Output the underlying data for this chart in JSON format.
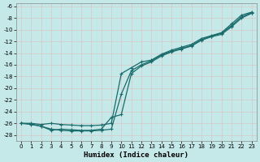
{
  "xlabel": "Humidex (Indice chaleur)",
  "ylabel": "",
  "xlim": [
    -0.5,
    23.5
  ],
  "ylim": [
    -29,
    -5.5
  ],
  "yticks": [
    -6,
    -8,
    -10,
    -12,
    -14,
    -16,
    -18,
    -20,
    -22,
    -24,
    -26,
    -28
  ],
  "xticks": [
    0,
    1,
    2,
    3,
    4,
    5,
    6,
    7,
    8,
    9,
    10,
    11,
    12,
    13,
    14,
    15,
    16,
    17,
    18,
    19,
    20,
    21,
    22,
    23
  ],
  "background_color": "#c5e8e8",
  "grid_color": "#b0d8d8",
  "line_color": "#1a6b6b",
  "line1_x": [
    0,
    1,
    2,
    3,
    4,
    5,
    6,
    7,
    8,
    9,
    10,
    11,
    12,
    13,
    14,
    15,
    16,
    17,
    18,
    19,
    20,
    21,
    22,
    23
  ],
  "line1_y": [
    -26.0,
    -26.0,
    -26.2,
    -26.0,
    -26.2,
    -26.3,
    -26.4,
    -26.4,
    -26.3,
    -26.0,
    -17.5,
    -16.5,
    -15.5,
    -15.2,
    -14.2,
    -13.5,
    -13.0,
    -12.5,
    -11.5,
    -11.0,
    -10.5,
    -9.0,
    -7.5,
    -7.0
  ],
  "line2_x": [
    0,
    1,
    2,
    3,
    4,
    5,
    6,
    7,
    8,
    9,
    10,
    11,
    12,
    13,
    14,
    15,
    16,
    17,
    18,
    19,
    20,
    21,
    22,
    23
  ],
  "line2_y": [
    -26.0,
    -26.2,
    -26.5,
    -27.0,
    -27.2,
    -27.3,
    -27.3,
    -27.3,
    -27.2,
    -27.0,
    -21.0,
    -17.0,
    -16.0,
    -15.3,
    -14.3,
    -13.7,
    -13.2,
    -12.7,
    -11.7,
    -11.1,
    -10.6,
    -9.3,
    -7.8,
    -7.1
  ],
  "line3_x": [
    0,
    1,
    2,
    3,
    4,
    5,
    6,
    7,
    8,
    9,
    10,
    11,
    12,
    13,
    14,
    15,
    16,
    17,
    18,
    19,
    20,
    21,
    22,
    23
  ],
  "line3_y": [
    -26.0,
    -26.1,
    -26.5,
    -27.2,
    -27.0,
    -27.1,
    -27.2,
    -27.2,
    -27.0,
    -25.0,
    -24.5,
    -17.5,
    -16.2,
    -15.5,
    -14.5,
    -13.8,
    -13.3,
    -12.8,
    -11.8,
    -11.2,
    -10.8,
    -9.5,
    -8.0,
    -7.2
  ]
}
